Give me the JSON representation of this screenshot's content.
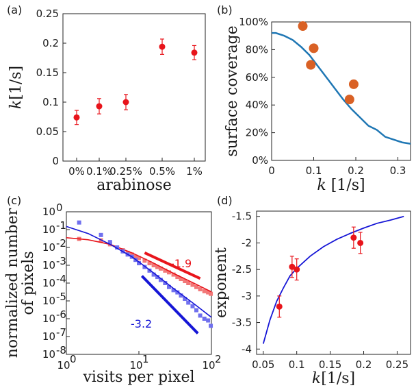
{
  "chart_data": [
    {
      "panel": "(a)",
      "type": "scatter",
      "categories": [
        "0%",
        "0.1%",
        "0.25%",
        "0.5%",
        "1%"
      ],
      "values": [
        0.074,
        0.093,
        0.1,
        0.194,
        0.184
      ],
      "errors": [
        0.012,
        0.013,
        0.013,
        0.013,
        0.012
      ],
      "xlabel": "arabinose",
      "ylabel_var": "k",
      "ylabel_unit": "[1/s]",
      "ylim": [
        0,
        0.25
      ],
      "yticks": [
        "0",
        "0.05",
        "0.1",
        "0.15",
        "0.2",
        "0.25"
      ],
      "color": "#e8141b"
    },
    {
      "panel": "(b)",
      "type": "scatter",
      "xlabel_var": "k",
      "xlabel_unit": "[1/s]",
      "ylabel": "surface coverage",
      "xlim": [
        0,
        0.33
      ],
      "ylim": [
        0,
        100
      ],
      "xticks": [
        "0",
        "0.1",
        "0.2",
        "0.3"
      ],
      "yticks": [
        "0%",
        "20%",
        "40%",
        "60%",
        "80%",
        "100%"
      ],
      "points": [
        [
          0.074,
          97
        ],
        [
          0.093,
          69
        ],
        [
          0.1,
          81
        ],
        [
          0.185,
          44
        ],
        [
          0.195,
          55
        ]
      ],
      "curve": [
        [
          0,
          92
        ],
        [
          0.01,
          92
        ],
        [
          0.03,
          90
        ],
        [
          0.05,
          87
        ],
        [
          0.07,
          82
        ],
        [
          0.09,
          76
        ],
        [
          0.11,
          68
        ],
        [
          0.13,
          60
        ],
        [
          0.15,
          52
        ],
        [
          0.17,
          44
        ],
        [
          0.19,
          37
        ],
        [
          0.21,
          31
        ],
        [
          0.23,
          25
        ],
        [
          0.25,
          22
        ],
        [
          0.27,
          17
        ],
        [
          0.29,
          15
        ],
        [
          0.31,
          13
        ],
        [
          0.33,
          12
        ]
      ],
      "point_color": "#d96125",
      "curve_color": "#1f77b4"
    },
    {
      "panel": "(c)",
      "type": "scatter",
      "xscale": "log",
      "yscale": "log",
      "xlabel": "visits per pixel",
      "ylabel": "normalized number of pixels",
      "ylabel_lines": [
        "normalized number",
        "of pixels"
      ],
      "xlim": [
        1,
        100
      ],
      "ylim": [
        1e-08,
        1
      ],
      "xticks": [
        "10",
        "10",
        "10"
      ],
      "xtick_exp": [
        "0",
        "1",
        "2"
      ],
      "yticks": [
        "10",
        "10",
        "10",
        "10",
        "10",
        "10",
        "10",
        "10",
        "10"
      ],
      "ytick_exp": [
        "-8",
        "-7",
        "-6",
        "-5",
        "-4",
        "-3",
        "-2",
        "-1",
        "0"
      ],
      "series": [
        {
          "slope_label": "-1.9",
          "color": "#e8141b",
          "marker_color": "#f27878",
          "points": [
            [
              1.5,
              0.03
            ],
            [
              3,
              0.025
            ],
            [
              4,
              0.015
            ],
            [
              5,
              0.01
            ],
            [
              6,
              0.007
            ],
            [
              7,
              0.005
            ],
            [
              8,
              0.004
            ],
            [
              9,
              0.003
            ],
            [
              10,
              0.0025
            ],
            [
              12,
              0.0018
            ],
            [
              14,
              0.0013
            ],
            [
              16,
              0.001
            ],
            [
              18,
              0.0008
            ],
            [
              20,
              0.00065
            ],
            [
              23,
              0.0005
            ],
            [
              26,
              0.0004
            ],
            [
              30,
              0.0003
            ],
            [
              34,
              0.00022
            ],
            [
              38,
              0.00017
            ],
            [
              43,
              0.00013
            ],
            [
              48,
              0.0001
            ],
            [
              55,
              8e-05
            ],
            [
              62,
              6e-05
            ],
            [
              70,
              4.5e-05
            ],
            [
              80,
              3.5e-05
            ],
            [
              90,
              3e-05
            ],
            [
              98,
              2.5e-05
            ]
          ],
          "fit": [
            [
              1,
              0.035
            ],
            [
              2,
              0.027
            ],
            [
              4,
              0.015
            ],
            [
              8,
              0.005
            ],
            [
              15,
              0.0015
            ],
            [
              30,
              0.00035
            ],
            [
              60,
              9e-05
            ],
            [
              100,
              3.2e-05
            ]
          ],
          "guide": [
            [
              12,
              0.005
            ],
            [
              70,
              0.00018
            ]
          ]
        },
        {
          "slope_label": "-3.2",
          "color": "#1515d6",
          "marker_color": "#7070ee",
          "points": [
            [
              1.5,
              0.25
            ],
            [
              3,
              0.05
            ],
            [
              4,
              0.02
            ],
            [
              5,
              0.01
            ],
            [
              6,
              0.006
            ],
            [
              7,
              0.004
            ],
            [
              8,
              0.003
            ],
            [
              9,
              0.002
            ],
            [
              10,
              0.0013
            ],
            [
              12,
              0.0008
            ],
            [
              14,
              0.0005
            ],
            [
              16,
              0.0003
            ],
            [
              18,
              0.00022
            ],
            [
              20,
              0.00015
            ],
            [
              23,
              0.0001
            ],
            [
              26,
              6e-05
            ],
            [
              30,
              4e-05
            ],
            [
              34,
              3e-05
            ],
            [
              38,
              2e-05
            ],
            [
              43,
              1.3e-05
            ],
            [
              48,
              8e-06
            ],
            [
              55,
              5e-06
            ],
            [
              62,
              3e-06
            ],
            [
              70,
              1.5e-06
            ],
            [
              80,
              1e-06
            ],
            [
              90,
              8e-07
            ],
            [
              98,
              4e-07
            ]
          ],
          "fit": [
            [
              1,
              0.15
            ],
            [
              2,
              0.06
            ],
            [
              4,
              0.015
            ],
            [
              8,
              0.003
            ],
            [
              15,
              0.00045
            ],
            [
              30,
              5e-05
            ],
            [
              60,
              6e-06
            ],
            [
              100,
              1.2e-06
            ]
          ],
          "guide": [
            [
              11,
              0.00025
            ],
            [
              65,
              1.5e-07
            ]
          ]
        }
      ]
    },
    {
      "panel": "(d)",
      "type": "scatter",
      "xlabel_var": "k",
      "xlabel_unit": "[1/s]",
      "ylabel": "exponent",
      "xlim": [
        0.04,
        0.27
      ],
      "ylim": [
        -4.1,
        -1.4
      ],
      "xticks": [
        "0.05",
        "0.1",
        "0.15",
        "0.2",
        "0.25"
      ],
      "yticks": [
        "-4",
        "-3.5",
        "-3",
        "-2.5",
        "-2",
        "-1.5"
      ],
      "points": [
        [
          0.074,
          -3.2
        ],
        [
          0.093,
          -2.45
        ],
        [
          0.1,
          -2.5
        ],
        [
          0.185,
          -1.9
        ],
        [
          0.195,
          -2.0
        ]
      ],
      "errors": [
        0.2,
        0.2,
        0.2,
        0.2,
        0.2
      ],
      "curve": [
        [
          0.05,
          -3.9
        ],
        [
          0.06,
          -3.45
        ],
        [
          0.07,
          -3.1
        ],
        [
          0.08,
          -2.85
        ],
        [
          0.09,
          -2.62
        ],
        [
          0.1,
          -2.48
        ],
        [
          0.12,
          -2.25
        ],
        [
          0.14,
          -2.07
        ],
        [
          0.16,
          -1.93
        ],
        [
          0.18,
          -1.82
        ],
        [
          0.2,
          -1.72
        ],
        [
          0.22,
          -1.63
        ],
        [
          0.24,
          -1.57
        ],
        [
          0.26,
          -1.5
        ]
      ],
      "point_color": "#e8141b",
      "curve_color": "#1515d6"
    }
  ]
}
